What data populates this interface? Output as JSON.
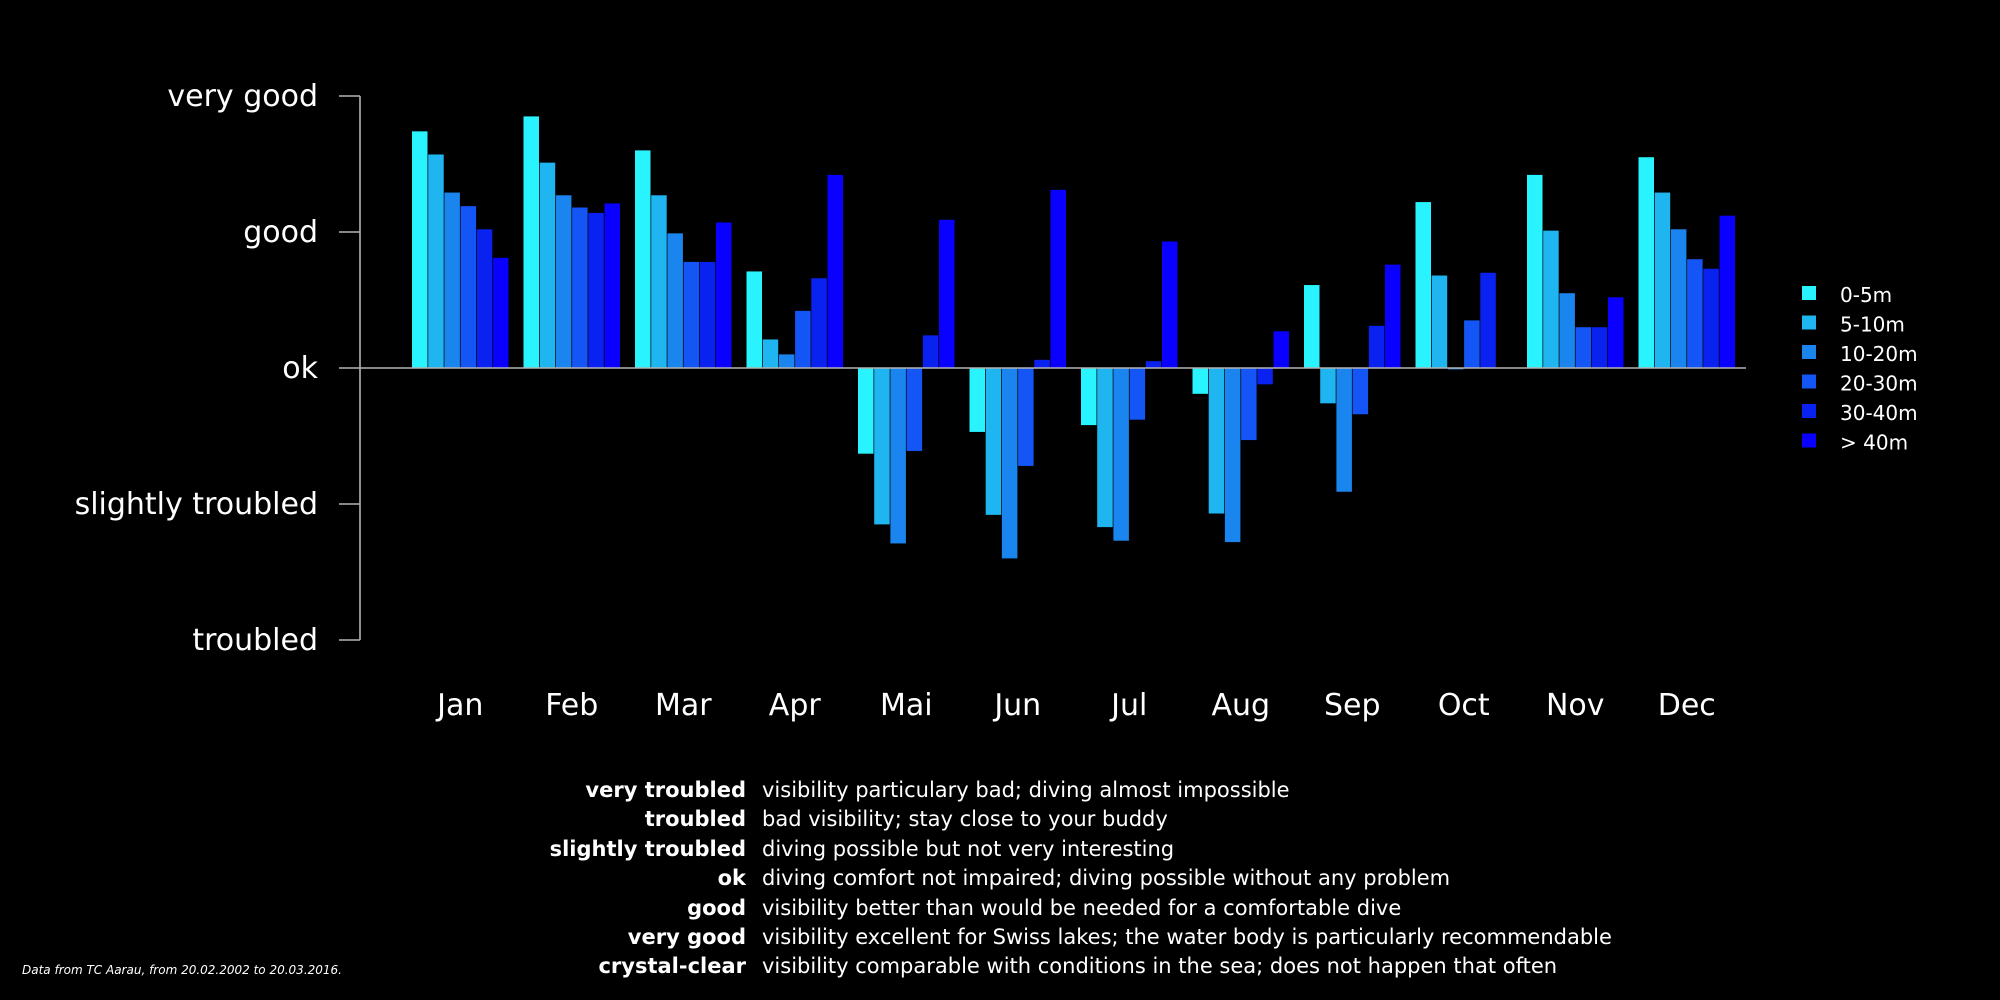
{
  "chart_data": {
    "type": "bar",
    "categories": [
      "Jan",
      "Feb",
      "Mar",
      "Apr",
      "Mai",
      "Jun",
      "Jul",
      "Aug",
      "Sep",
      "Oct",
      "Nov",
      "Dec"
    ],
    "y_ticks": [
      {
        "value": 4,
        "label": "very good"
      },
      {
        "value": 3,
        "label": "good"
      },
      {
        "value": 2,
        "label": "ok"
      },
      {
        "value": 1,
        "label": "slightly troubled"
      },
      {
        "value": 0,
        "label": "troubled"
      }
    ],
    "ylim": [
      0,
      4
    ],
    "baseline": 2,
    "series": [
      {
        "name": "0-5m",
        "color": "#29f3ff",
        "values": [
          3.74,
          3.85,
          3.6,
          2.71,
          1.37,
          1.53,
          1.58,
          1.81,
          2.61,
          3.22,
          3.42,
          3.55
        ]
      },
      {
        "name": "5-10m",
        "color": "#1fb5f0",
        "values": [
          3.57,
          3.51,
          3.27,
          2.21,
          0.85,
          0.92,
          0.83,
          0.93,
          1.74,
          2.68,
          3.01,
          3.29
        ]
      },
      {
        "name": "10-20m",
        "color": "#1a85ee",
        "values": [
          3.29,
          3.27,
          2.99,
          2.1,
          0.71,
          0.6,
          0.73,
          0.72,
          1.09,
          1.99,
          2.55,
          3.02
        ]
      },
      {
        "name": "20-30m",
        "color": "#1455f5",
        "values": [
          3.19,
          3.18,
          2.78,
          2.42,
          1.39,
          1.28,
          1.62,
          1.47,
          1.66,
          2.35,
          2.3,
          2.8
        ]
      },
      {
        "name": "30-40m",
        "color": "#0a22f0",
        "values": [
          3.02,
          3.14,
          2.78,
          2.66,
          2.24,
          2.06,
          2.05,
          1.88,
          2.31,
          2.7,
          2.3,
          2.73
        ]
      },
      {
        "name": "> 40m",
        "color": "#0a00ff",
        "values": [
          2.81,
          3.21,
          3.07,
          3.42,
          3.09,
          3.31,
          2.93,
          2.27,
          2.76,
          null,
          2.52,
          3.12
        ]
      }
    ],
    "legend_position": "right",
    "grid": false,
    "colors": {
      "background": "#000000",
      "axis": "#b4b4b4",
      "text": "#ffffff"
    }
  },
  "definitions": [
    {
      "term": "very troubled",
      "description": "visibility particulary bad; diving almost impossible"
    },
    {
      "term": "troubled",
      "description": "bad visibility; stay close to your buddy"
    },
    {
      "term": "slightly troubled",
      "description": "diving possible but not very interesting"
    },
    {
      "term": "ok",
      "description": "diving comfort not impaired; diving possible without any problem"
    },
    {
      "term": "good",
      "description": "visibility better than would be needed for a comfortable dive"
    },
    {
      "term": "very good",
      "description": "visibility excellent for Swiss lakes; the water body is particularly recommendable"
    },
    {
      "term": "crystal-clear",
      "description": "visibility comparable with conditions in the sea; does not happen that often"
    }
  ],
  "source_note": "Data from TC Aarau, from 20.02.2002 to 20.03.2016."
}
